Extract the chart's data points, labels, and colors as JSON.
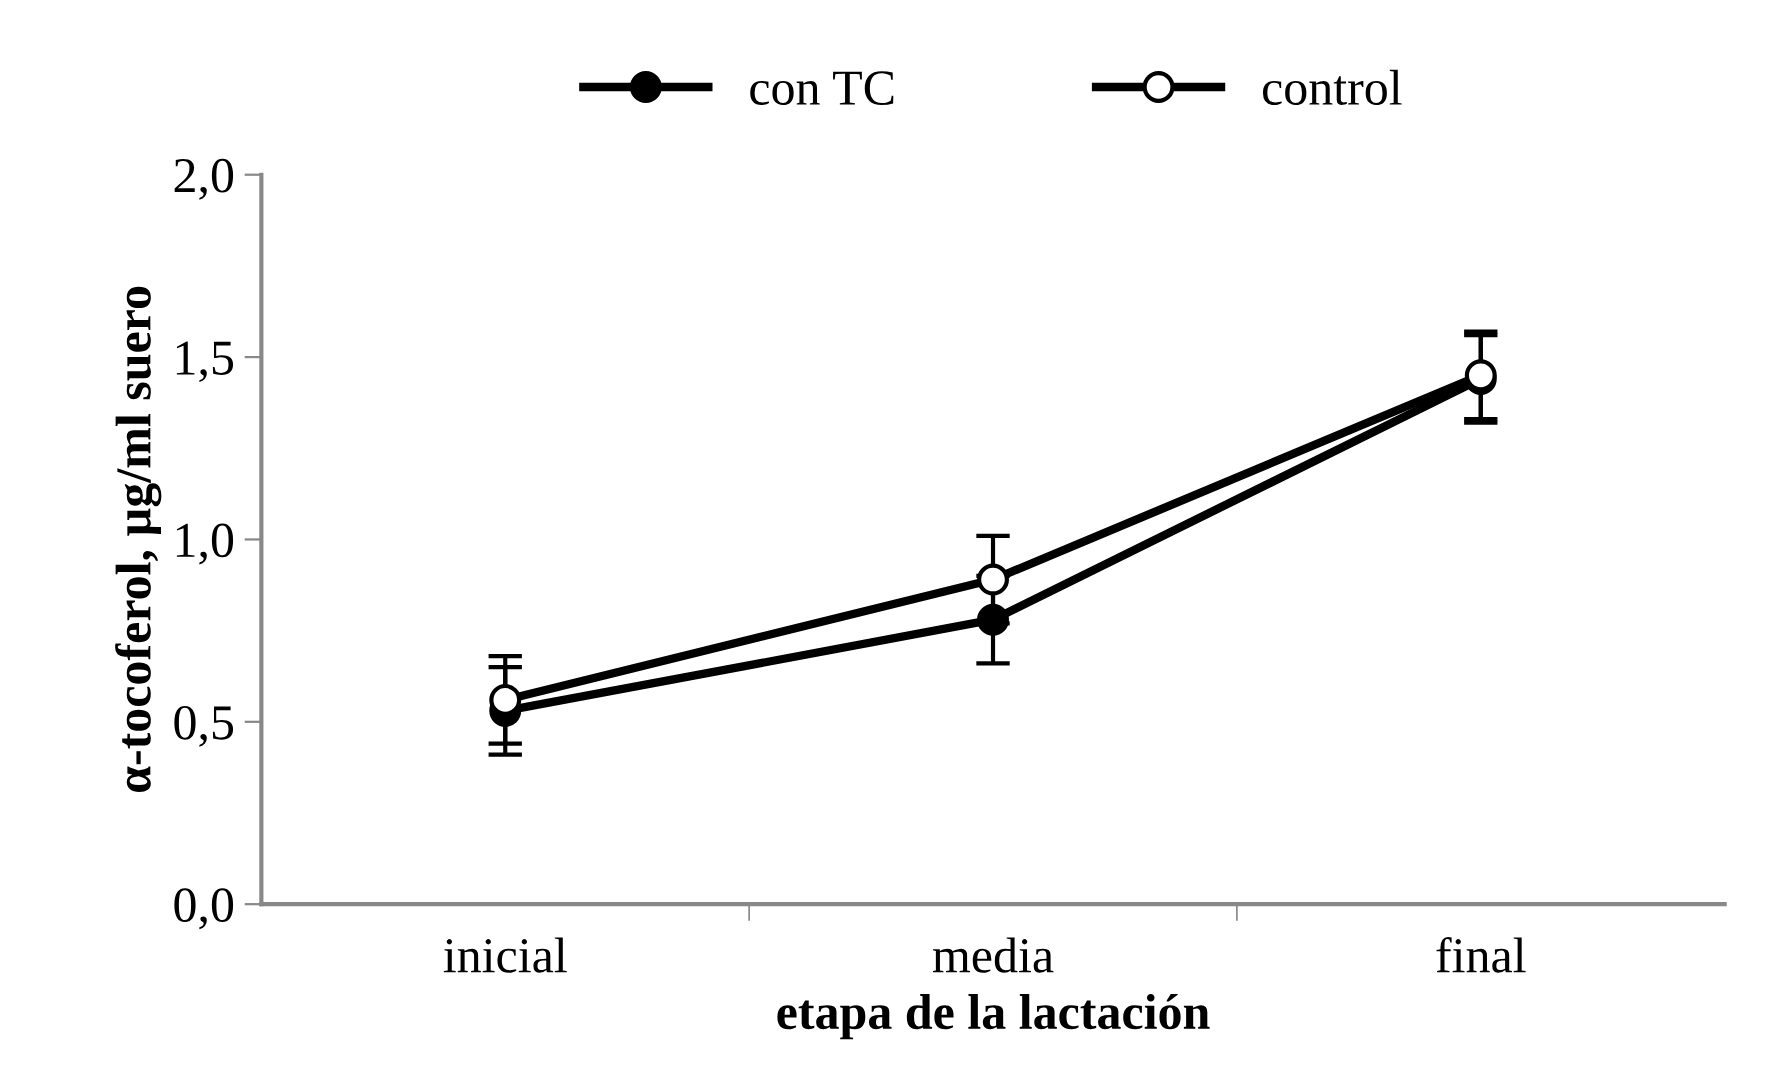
{
  "chart_data": {
    "type": "line",
    "xlabel": "etapa de la lactación",
    "ylabel": "α-tocoferol, µg/ml suero",
    "categories": [
      "inicial",
      "media",
      "final"
    ],
    "series": [
      {
        "name": "con TC",
        "color": "#000000",
        "values": [
          0.53,
          0.78,
          1.44
        ],
        "errors": [
          0.12,
          0.12,
          0.12
        ]
      },
      {
        "name": "control",
        "color": "#000000",
        "values": [
          0.56,
          0.89,
          1.45
        ],
        "errors": [
          0.12,
          0.12,
          0.12
        ]
      }
    ],
    "ylim": [
      0,
      2
    ],
    "yticks": [
      {
        "value": 0,
        "label": "0,0"
      },
      {
        "value": 0.5,
        "label": "0,5"
      },
      {
        "value": 1,
        "label": "1,0"
      },
      {
        "value": 1.5,
        "label": "1,5"
      },
      {
        "value": 2,
        "label": "2,0"
      }
    ],
    "grid": false,
    "legend": "top",
    "marker": "circle",
    "line_style": "solid"
  }
}
